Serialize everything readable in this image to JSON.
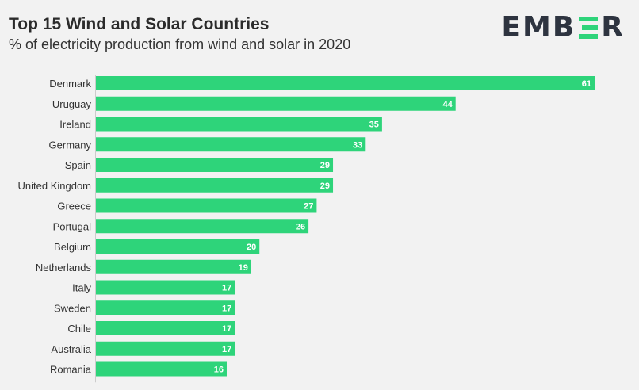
{
  "header": {
    "title": "Top 15 Wind and Solar Countries",
    "subtitle": "% of electricity production from wind and solar in 2020",
    "logo_text": "EMBER",
    "logo_icon": "ember-e-icon"
  },
  "colors": {
    "bar": "#2ed47a",
    "background": "#f2f2f2",
    "baseline": "#cccccc"
  },
  "chart_data": {
    "type": "bar",
    "orientation": "horizontal",
    "categories": [
      "Denmark",
      "Uruguay",
      "Ireland",
      "Germany",
      "Spain",
      "United Kingdom",
      "Greece",
      "Portugal",
      "Belgium",
      "Netherlands",
      "Italy",
      "Sweden",
      "Chile",
      "Australia",
      "Romania"
    ],
    "values": [
      61,
      44,
      35,
      33,
      29,
      29,
      27,
      26,
      20,
      19,
      17,
      17,
      17,
      17,
      16
    ],
    "xlim": [
      0,
      61
    ],
    "grid": false,
    "legend": "none"
  }
}
